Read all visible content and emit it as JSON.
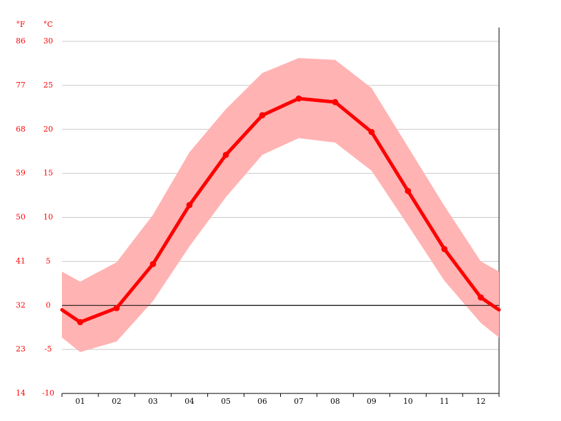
{
  "chart_data": {
    "type": "line",
    "categories": [
      "01",
      "02",
      "03",
      "04",
      "05",
      "06",
      "07",
      "08",
      "09",
      "10",
      "11",
      "12"
    ],
    "series": [
      {
        "color": "#ff0000",
        "values": [
          -1.9,
          -0.3,
          4.7,
          11.4,
          17.1,
          21.6,
          23.5,
          23.1,
          19.7,
          13.0,
          6.4,
          0.9
        ]
      },
      {
        "color": "#ffb3b3",
        "values": [
          2.7,
          4.9,
          10.3,
          17.4,
          22.3,
          26.4,
          28.1,
          27.9,
          24.7,
          18.0,
          11.3,
          5.0
        ]
      },
      {
        "color": "#ffb3b3",
        "values": [
          -5.3,
          -4.1,
          0.5,
          6.7,
          12.3,
          17.1,
          19.0,
          18.5,
          15.3,
          9.1,
          2.8,
          -2.0
        ]
      }
    ],
    "ylabel": "°C",
    "y2label": "°F",
    "ylim": [
      -10,
      30
    ],
    "yticks": [
      -10,
      -5,
      0,
      5,
      10,
      15,
      20,
      25,
      30
    ],
    "y2lim": [
      14,
      86
    ],
    "y2ticks": [
      14,
      23,
      32,
      41,
      50,
      59,
      68,
      77,
      86
    ],
    "grid": true
  }
}
